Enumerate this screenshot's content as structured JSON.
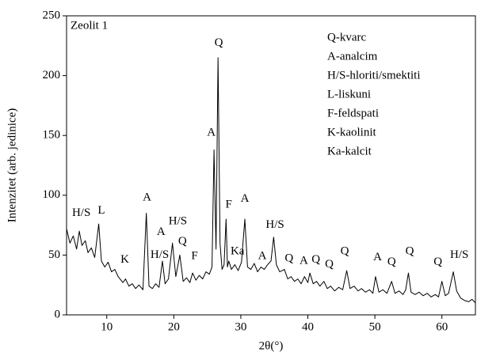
{
  "chart_data": {
    "type": "line",
    "title": "Zeolit 1",
    "xlabel": "2θ(°)",
    "ylabel": "Intenzitet (arb. jedinice)",
    "xlim": [
      4,
      65
    ],
    "ylim": [
      0,
      250
    ],
    "xticks": [
      10,
      20,
      30,
      40,
      50,
      60
    ],
    "yticks": [
      0,
      50,
      100,
      150,
      200,
      250
    ],
    "grid": false,
    "legend_entries": [
      "Q-kvarc",
      "A-analcim",
      "H/S-hloriti/smektiti",
      "L-liskuni",
      "F-feldspati",
      "K-kaolinit",
      "Ka-kalcit"
    ],
    "series": [
      {
        "color": "#000000",
        "x": [
          4.0,
          4.5,
          5.0,
          5.5,
          5.9,
          6.3,
          6.8,
          7.2,
          7.7,
          8.2,
          8.8,
          9.2,
          9.7,
          10.2,
          10.7,
          11.2,
          11.7,
          12.4,
          12.8,
          13.3,
          13.8,
          14.3,
          14.8,
          15.4,
          15.9,
          16.3,
          16.8,
          17.3,
          17.8,
          18.3,
          18.7,
          19.2,
          19.8,
          20.3,
          20.9,
          21.4,
          21.9,
          22.4,
          22.8,
          23.3,
          23.8,
          24.3,
          24.8,
          25.3,
          25.7,
          26.0,
          26.3,
          26.6,
          26.9,
          27.2,
          27.5,
          27.8,
          28.0,
          28.2,
          28.6,
          29.1,
          29.6,
          30.1,
          30.6,
          31.0,
          31.5,
          32.0,
          32.5,
          33.0,
          33.5,
          34.0,
          34.5,
          34.9,
          35.3,
          35.8,
          36.5,
          37.0,
          37.5,
          38.0,
          38.5,
          39.0,
          39.5,
          40.0,
          40.3,
          40.8,
          41.3,
          41.8,
          42.4,
          42.9,
          43.4,
          44.0,
          44.6,
          45.2,
          45.8,
          46.3,
          46.9,
          47.5,
          48.0,
          48.6,
          49.2,
          49.7,
          50.1,
          50.6,
          51.2,
          51.8,
          52.5,
          53.0,
          53.6,
          54.2,
          54.6,
          55.0,
          55.4,
          56.0,
          56.6,
          57.2,
          57.8,
          58.4,
          59.0,
          59.5,
          60.0,
          60.5,
          61.0,
          61.7,
          62.2,
          62.8,
          63.4,
          64.0,
          64.5,
          65.0
        ],
        "values": [
          72,
          60,
          66,
          55,
          70,
          58,
          62,
          52,
          56,
          48,
          76,
          45,
          40,
          44,
          36,
          38,
          32,
          27,
          30,
          24,
          26,
          22,
          25,
          21,
          85,
          24,
          22,
          26,
          23,
          45,
          26,
          30,
          60,
          32,
          50,
          28,
          31,
          27,
          35,
          29,
          33,
          30,
          36,
          34,
          40,
          138,
          55,
          215,
          60,
          38,
          42,
          80,
          40,
          45,
          38,
          42,
          37,
          44,
          80,
          40,
          38,
          43,
          36,
          40,
          38,
          42,
          45,
          65,
          42,
          36,
          38,
          30,
          32,
          28,
          30,
          26,
          32,
          27,
          35,
          26,
          28,
          24,
          28,
          22,
          24,
          20,
          23,
          21,
          37,
          22,
          24,
          20,
          22,
          19,
          21,
          18,
          32,
          19,
          21,
          18,
          28,
          18,
          20,
          17,
          21,
          35,
          19,
          17,
          19,
          16,
          18,
          15,
          17,
          15,
          28,
          16,
          18,
          36,
          20,
          14,
          12,
          11,
          13,
          10
        ]
      }
    ],
    "annotations": [
      {
        "text": "H/S",
        "x": 6.2,
        "y": 85
      },
      {
        "text": "L",
        "x": 9.2,
        "y": 87
      },
      {
        "text": "K",
        "x": 12.7,
        "y": 46
      },
      {
        "text": "A",
        "x": 16.0,
        "y": 98
      },
      {
        "text": "A",
        "x": 18.1,
        "y": 69
      },
      {
        "text": "H/S",
        "x": 17.9,
        "y": 50
      },
      {
        "text": "H/S",
        "x": 20.6,
        "y": 78
      },
      {
        "text": "Q",
        "x": 21.3,
        "y": 61
      },
      {
        "text": "F",
        "x": 23.1,
        "y": 49
      },
      {
        "text": "A",
        "x": 25.6,
        "y": 152
      },
      {
        "text": "Q",
        "x": 26.7,
        "y": 227
      },
      {
        "text": "F",
        "x": 28.2,
        "y": 92
      },
      {
        "text": "Ka",
        "x": 29.5,
        "y": 53
      },
      {
        "text": "A",
        "x": 30.6,
        "y": 97
      },
      {
        "text": "A",
        "x": 33.2,
        "y": 49
      },
      {
        "text": "H/S",
        "x": 35.1,
        "y": 75
      },
      {
        "text": "Q",
        "x": 37.2,
        "y": 47
      },
      {
        "text": "A",
        "x": 39.4,
        "y": 45
      },
      {
        "text": "Q",
        "x": 41.2,
        "y": 46
      },
      {
        "text": "Q",
        "x": 43.2,
        "y": 42
      },
      {
        "text": "Q",
        "x": 45.5,
        "y": 53
      },
      {
        "text": "A",
        "x": 50.4,
        "y": 48
      },
      {
        "text": "Q",
        "x": 52.5,
        "y": 44
      },
      {
        "text": "Q",
        "x": 55.2,
        "y": 53
      },
      {
        "text": "Q",
        "x": 59.4,
        "y": 44
      },
      {
        "text": "H/S",
        "x": 62.6,
        "y": 50
      }
    ]
  }
}
